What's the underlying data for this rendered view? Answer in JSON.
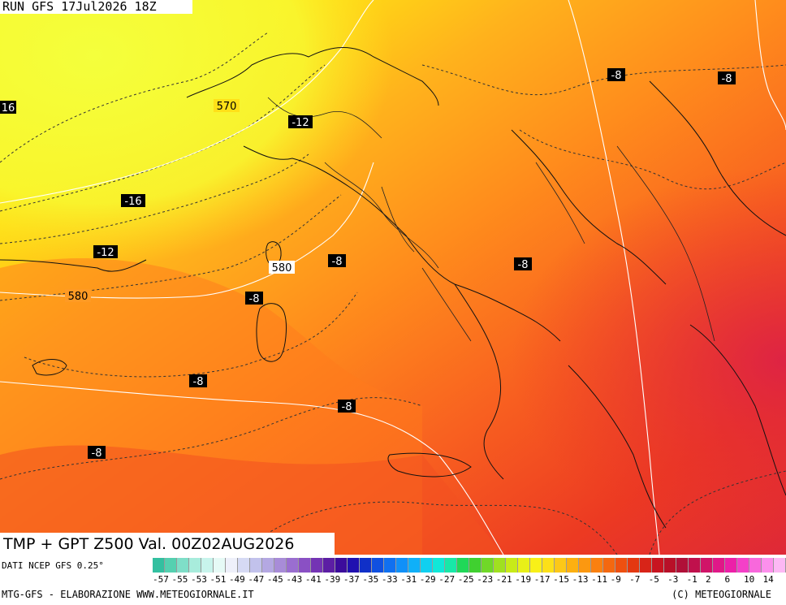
{
  "header": {
    "run_label": "RUN GFS 17Jul2026 18Z"
  },
  "title": {
    "text": "TMP + GPT Z500 Val. 00Z02AUG2026"
  },
  "source": {
    "text": "DATI NCEP GFS 0.25°"
  },
  "footer": {
    "left": "MTG-GFS - ELABORAZIONE WWW.METEOGIORNALE.IT",
    "right": "(C) METEOGIORNALE"
  },
  "temp_labels": [
    {
      "text": "-8",
      "key": "t1"
    },
    {
      "text": "-8",
      "key": "t2"
    },
    {
      "text": "-12",
      "key": "t3"
    },
    {
      "text": "-16",
      "key": "t4"
    },
    {
      "text": "-12",
      "key": "t5"
    },
    {
      "text": "-8",
      "key": "t6"
    },
    {
      "text": "-8",
      "key": "t7"
    },
    {
      "text": "-8",
      "key": "t8"
    },
    {
      "text": "-8",
      "key": "t9"
    },
    {
      "text": "-8",
      "key": "t10"
    },
    {
      "text": "-8",
      "key": "t11"
    },
    {
      "text": "16",
      "key": "t12"
    }
  ],
  "gpt_labels": [
    {
      "text": "570",
      "key": "g1"
    },
    {
      "text": "580",
      "key": "g2"
    },
    {
      "text": "580",
      "key": "g3"
    }
  ],
  "legend": {
    "tick_labels": [
      "-57",
      "-55",
      "-53",
      "-51",
      "-49",
      "-47",
      "-45",
      "-43",
      "-41",
      "-39",
      "-37",
      "-35",
      "-33",
      "-31",
      "-29",
      "-27",
      "-25",
      "-23",
      "-21",
      "-19",
      "-17",
      "-15",
      "-13",
      "-11",
      "-9",
      "-7",
      "-5",
      "-3",
      "-1",
      "2",
      "6",
      "10",
      "14"
    ],
    "colors": [
      "#33c0a0",
      "#55d0b0",
      "#7fdec8",
      "#a8ecdc",
      "#c8f4ec",
      "#e6faf6",
      "#eef0fa",
      "#d6daf4",
      "#c2c2ec",
      "#b4a8e2",
      "#a88cd8",
      "#9a6ed0",
      "#8a50c4",
      "#7434b4",
      "#5c1ea4",
      "#3c0c9c",
      "#2010b0",
      "#1030c8",
      "#1050e0",
      "#1070f0",
      "#1090f8",
      "#10b0f8",
      "#10d0f0",
      "#10e8d8",
      "#18e8a8",
      "#20d858",
      "#40d030",
      "#70d828",
      "#a0e020",
      "#c8ea18",
      "#e8f018",
      "#f8f018",
      "#fce018",
      "#fcc818",
      "#fcb010",
      "#fc9810",
      "#fa8010",
      "#f46810",
      "#ee5010",
      "#e43810",
      "#d82418",
      "#c81420",
      "#b81028",
      "#b01038",
      "#c0104c",
      "#d01468",
      "#e01888",
      "#ec20a8",
      "#f440c8",
      "#f868dc",
      "#fc90ec",
      "#fcb8f4"
    ]
  }
}
